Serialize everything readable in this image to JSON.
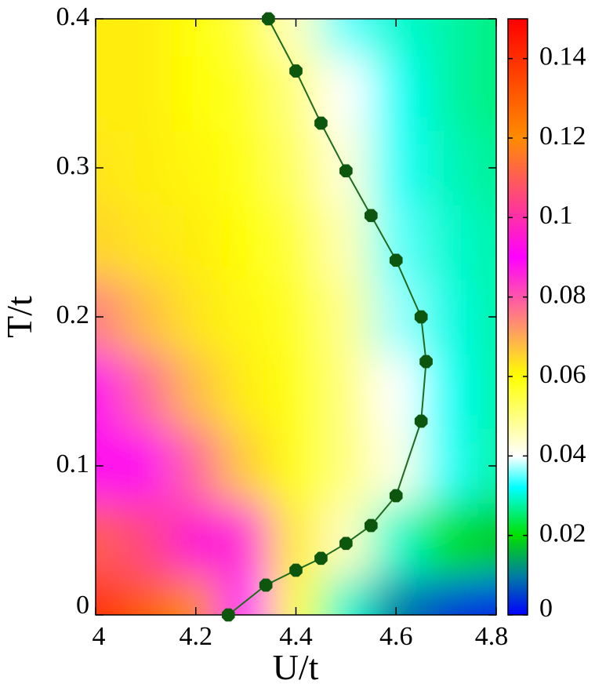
{
  "chart_data": {
    "type": "heatmap",
    "x_label": "U/t",
    "y_label": "T/t",
    "x": [
      4.0,
      4.1,
      4.2,
      4.3,
      4.4,
      4.5,
      4.6,
      4.7,
      4.8
    ],
    "y": [
      0,
      0.05,
      0.1,
      0.15,
      0.2,
      0.25,
      0.3,
      0.35,
      0.4
    ],
    "z": [
      [
        0.14,
        0.13,
        0.12,
        0.09,
        0.06,
        0.03,
        0.01,
        0.005,
        0.003
      ],
      [
        0.11,
        0.105,
        0.095,
        0.085,
        0.062,
        0.045,
        0.03,
        0.022,
        0.018
      ],
      [
        0.092,
        0.088,
        0.078,
        0.066,
        0.058,
        0.05,
        0.042,
        0.033,
        0.028
      ],
      [
        0.088,
        0.078,
        0.068,
        0.062,
        0.058,
        0.05,
        0.04,
        0.032,
        0.028
      ],
      [
        0.075,
        0.068,
        0.063,
        0.061,
        0.057,
        0.049,
        0.037,
        0.031,
        0.028
      ],
      [
        0.065,
        0.063,
        0.062,
        0.06,
        0.055,
        0.046,
        0.035,
        0.03,
        0.028
      ],
      [
        0.063,
        0.062,
        0.061,
        0.058,
        0.052,
        0.043,
        0.033,
        0.029,
        0.027
      ],
      [
        0.062,
        0.062,
        0.06,
        0.057,
        0.05,
        0.04,
        0.032,
        0.028,
        0.026
      ],
      [
        0.062,
        0.062,
        0.06,
        0.055,
        0.045,
        0.035,
        0.03,
        0.028,
        0.026
      ]
    ],
    "colormap": [
      {
        "value": 0,
        "color": "#0000ff"
      },
      {
        "value": 0.01,
        "color": "#007fa0"
      },
      {
        "value": 0.02,
        "color": "#00e000"
      },
      {
        "value": 0.032,
        "color": "#00ffff"
      },
      {
        "value": 0.04,
        "color": "#ffffff"
      },
      {
        "value": 0.06,
        "color": "#ffff00"
      },
      {
        "value": 0.09,
        "color": "#ff00ff"
      },
      {
        "value": 0.12,
        "color": "#ff8c00"
      },
      {
        "value": 0.15,
        "color": "#ff0000"
      }
    ],
    "clim": [
      0,
      0.15
    ],
    "cticks": [
      0,
      0.02,
      0.04,
      0.06,
      0.08,
      0.1,
      0.12,
      0.14
    ],
    "xlim": [
      4,
      4.8
    ],
    "xticks": [
      4,
      4.2,
      4.4,
      4.6,
      4.8
    ],
    "ylim": [
      0,
      0.4
    ],
    "yticks": [
      0,
      0.1,
      0.2,
      0.3,
      0.4
    ],
    "series": [
      {
        "type": "line",
        "color": "#1f6b1f",
        "marker_color": "#0d560d",
        "x": [
          4.265,
          4.34,
          4.4,
          4.45,
          4.5,
          4.55,
          4.6,
          4.65,
          4.66,
          4.65,
          4.6,
          4.55,
          4.5,
          4.45,
          4.4,
          4.345
        ],
        "values": [
          0,
          0.02,
          0.03,
          0.038,
          0.048,
          0.06,
          0.08,
          0.13,
          0.17,
          0.2,
          0.238,
          0.268,
          0.298,
          0.33,
          0.365,
          0.4
        ]
      }
    ]
  }
}
